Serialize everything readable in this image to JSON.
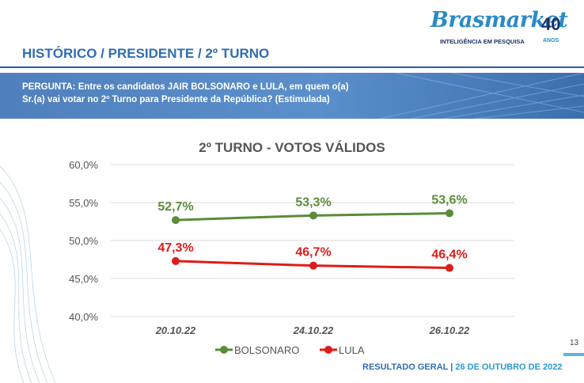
{
  "header": {
    "section_title": "HISTÓRICO / PRESIDENTE / 2º TURNO",
    "logo_name": "Brasmarket",
    "logo_number": "40",
    "logo_tagline": "INTELIGÊNCIA EM PESQUISA",
    "logo_anos": "ANOS"
  },
  "question": {
    "line1": "PERGUNTA: Entre os candidatos JAIR BOLSONARO e LULA, em quem o(a)",
    "line2": "Sr.(a) vai votar no 2º Turno para Presidente da República? (Estimulada)"
  },
  "chart_data": {
    "type": "line",
    "title": "2º TURNO - VOTOS VÁLIDOS",
    "categories": [
      "20.10.22",
      "24.10.22",
      "26.10.22"
    ],
    "series": [
      {
        "name": "BOLSONARO",
        "values": [
          52.7,
          53.3,
          53.6
        ],
        "labels": [
          "52,7%",
          "53,3%",
          "53,6%"
        ],
        "color": "#5a8c3a"
      },
      {
        "name": "LULA",
        "values": [
          47.3,
          46.7,
          46.4
        ],
        "labels": [
          "47,3%",
          "46,7%",
          "46,4%"
        ],
        "color": "#e01b1b"
      }
    ],
    "ylim": [
      40,
      60
    ],
    "yticks": [
      {
        "value": 60,
        "label": "60,0%"
      },
      {
        "value": 55,
        "label": "55,0%"
      },
      {
        "value": 50,
        "label": "50,0%"
      },
      {
        "value": 45,
        "label": "45,0%"
      },
      {
        "value": 40,
        "label": "40,0%"
      }
    ],
    "grid": true,
    "legend": "bottom-center"
  },
  "footer": {
    "label": "RESULTADO GERAL |",
    "date": "26 DE OUTUBRO DE 2022",
    "page_number": "13"
  }
}
